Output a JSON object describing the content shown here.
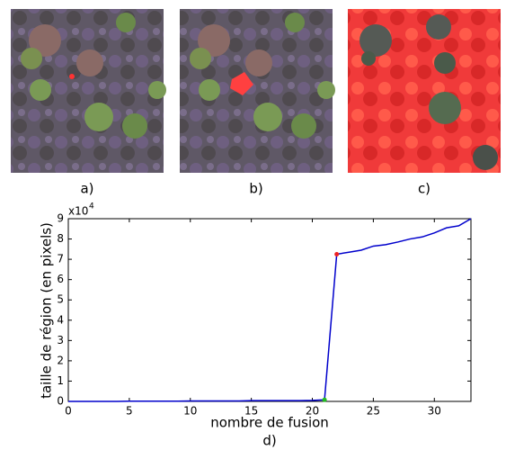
{
  "panel_labels": [
    "a)",
    "b)",
    "c)"
  ],
  "chart_data": {
    "type": "line",
    "caption": "d)",
    "x_label": "nombre de fusion",
    "y_label": "taille de région (en pixels)",
    "y_multiplier": "x10",
    "y_multiplier_exp": "4",
    "x": [
      0,
      1,
      2,
      3,
      4,
      5,
      6,
      7,
      8,
      9,
      10,
      11,
      12,
      13,
      14,
      15,
      16,
      17,
      18,
      19,
      20,
      21,
      22,
      23,
      24,
      25,
      26,
      27,
      28,
      29,
      30,
      31,
      32,
      33
    ],
    "series": [
      {
        "color": "#0000cc",
        "values": [
          0,
          0,
          0,
          0,
          0,
          0.01,
          0.01,
          0.01,
          0.01,
          0.01,
          0.02,
          0.02,
          0.02,
          0.02,
          0.02,
          0.04,
          0.04,
          0.04,
          0.04,
          0.04,
          0.05,
          0.08,
          7.25,
          7.35,
          7.45,
          7.65,
          7.72,
          7.85,
          8.0,
          8.1,
          8.3,
          8.55,
          8.65,
          9.0
        ]
      }
    ],
    "highlight": [
      {
        "index": 21,
        "color": "#22bb22"
      },
      {
        "index": 22,
        "color": "#ee2222"
      }
    ],
    "xlim": [
      0,
      33
    ],
    "ylim": [
      0,
      9
    ],
    "xticks": [
      0,
      5,
      10,
      15,
      20,
      25,
      30
    ],
    "yticks": [
      0,
      1,
      2,
      3,
      4,
      5,
      6,
      7,
      8,
      9
    ]
  }
}
